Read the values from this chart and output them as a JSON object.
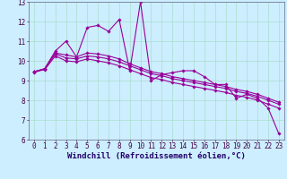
{
  "xlabel": "Windchill (Refroidissement éolien,°C)",
  "bg_color": "#cceeff",
  "grid_color": "#aaddcc",
  "line_color": "#990099",
  "xlim": [
    -0.5,
    23.5
  ],
  "ylim": [
    6,
    13
  ],
  "x_ticks": [
    0,
    1,
    2,
    3,
    4,
    5,
    6,
    7,
    8,
    9,
    10,
    11,
    12,
    13,
    14,
    15,
    16,
    17,
    18,
    19,
    20,
    21,
    22,
    23
  ],
  "y_ticks": [
    6,
    7,
    8,
    9,
    10,
    11,
    12,
    13
  ],
  "series0": [
    9.4,
    9.6,
    10.5,
    11.0,
    10.2,
    11.7,
    11.8,
    11.5,
    12.1,
    9.5,
    13.0,
    9.0,
    9.3,
    9.4,
    9.5,
    9.5,
    9.2,
    8.8,
    8.8,
    8.1,
    8.3,
    8.1,
    7.6,
    6.3
  ],
  "reg1": [
    9.45,
    9.6,
    10.4,
    10.3,
    10.2,
    10.4,
    10.35,
    10.25,
    10.1,
    9.85,
    9.65,
    9.45,
    9.35,
    9.2,
    9.1,
    9.0,
    8.9,
    8.8,
    8.7,
    8.55,
    8.45,
    8.3,
    8.1,
    7.9
  ],
  "reg2": [
    9.45,
    9.6,
    10.35,
    10.15,
    10.1,
    10.25,
    10.2,
    10.1,
    9.95,
    9.75,
    9.55,
    9.35,
    9.25,
    9.1,
    9.0,
    8.9,
    8.8,
    8.7,
    8.6,
    8.45,
    8.35,
    8.2,
    8.0,
    7.8
  ],
  "reg3": [
    9.45,
    9.55,
    10.25,
    10.0,
    9.95,
    10.1,
    10.0,
    9.9,
    9.75,
    9.55,
    9.35,
    9.15,
    9.05,
    8.9,
    8.8,
    8.7,
    8.6,
    8.5,
    8.4,
    8.25,
    8.15,
    8.0,
    7.8,
    7.6
  ],
  "marker": "D",
  "markersize": 1.8,
  "linewidth": 0.8,
  "xlabel_fontsize": 6.5,
  "tick_fontsize": 5.5
}
